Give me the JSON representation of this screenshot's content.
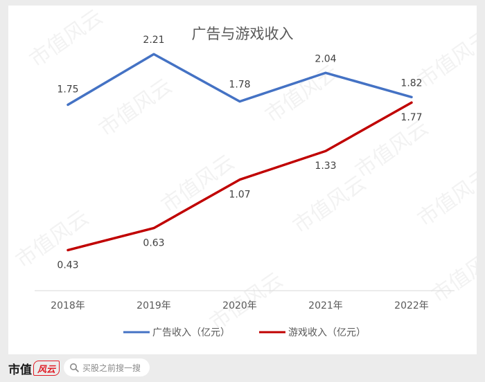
{
  "watermark": "市值风云",
  "chart_data": {
    "type": "line",
    "title": "广告与游戏收入",
    "categories": [
      "2018年",
      "2019年",
      "2020年",
      "2021年",
      "2022年"
    ],
    "series": [
      {
        "name": "广告收入（亿元）",
        "values": [
          1.75,
          2.21,
          1.78,
          2.04,
          1.82
        ],
        "color": "#4472c4"
      },
      {
        "name": "游戏收入（亿元）",
        "values": [
          0.43,
          0.63,
          1.07,
          1.33,
          1.77
        ],
        "color": "#c00000"
      }
    ],
    "ylim": [
      0.2,
      2.4
    ],
    "grid": false,
    "legend": "bottom"
  },
  "footer": {
    "brand": "市值",
    "brand_logo": "风云",
    "search_placeholder": "买股之前搜一搜"
  }
}
